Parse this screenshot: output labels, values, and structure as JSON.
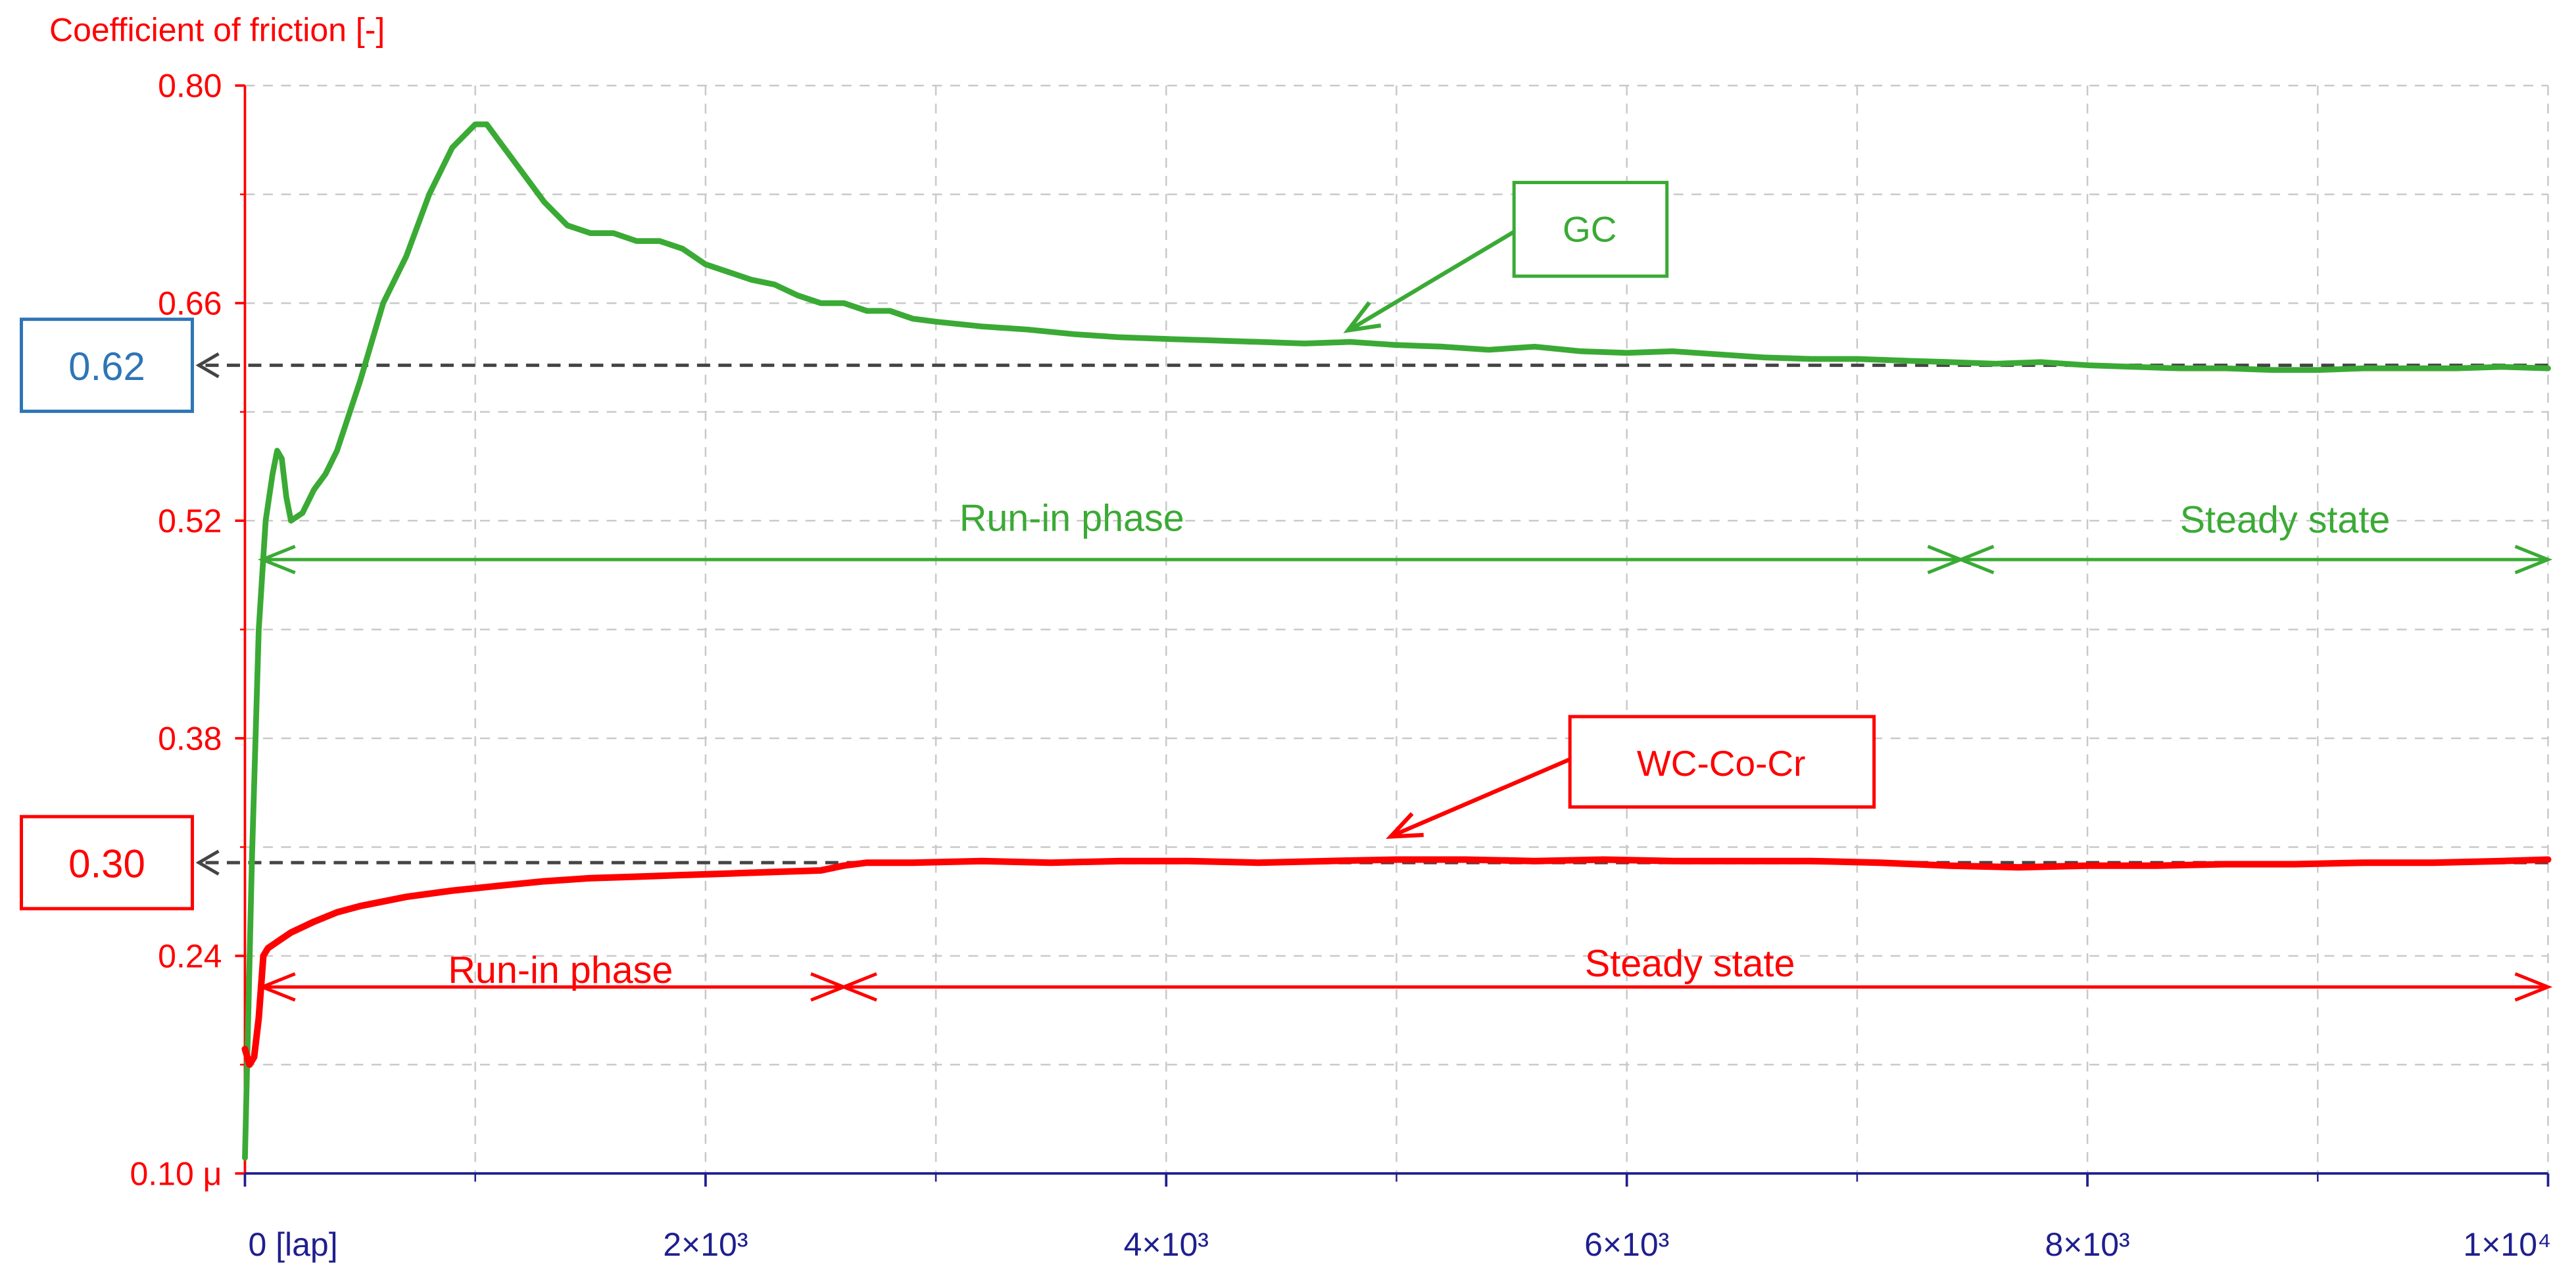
{
  "chart_data": {
    "type": "line",
    "y_axis_title": "Coefficient of friction [-]",
    "y_tick_labels": [
      "0.10 μ",
      "0.24",
      "0.38",
      "0.52",
      "0.66",
      "0.80"
    ],
    "x_tick_labels": [
      "0 [lap]",
      "2×10³",
      "4×10³",
      "6×10³",
      "8×10³",
      "1×10⁴"
    ],
    "xlim": [
      0,
      10000
    ],
    "ylim": [
      0.1,
      0.8
    ],
    "grid": true,
    "colors": {
      "y_axis": "#ff0000",
      "x_axis": "#1f1f8f",
      "gc": "#3aaa35",
      "wc": "#ff0000",
      "ref_line": "#444444",
      "box_062": "#2e75b6",
      "box_030": "#ff0000",
      "grid": "#c9c9c9"
    },
    "reference_lines": [
      {
        "value": 0.62,
        "label": "0.62",
        "color": "#2e75b6"
      },
      {
        "value": 0.3,
        "label": "0.30",
        "color": "#ff0000"
      }
    ],
    "series": [
      {
        "name": "GC",
        "color": "#3aaa35",
        "x": [
          0,
          30,
          60,
          90,
          120,
          140,
          160,
          180,
          200,
          250,
          300,
          350,
          400,
          500,
          600,
          700,
          800,
          900,
          1000,
          1050,
          1100,
          1200,
          1300,
          1400,
          1500,
          1600,
          1700,
          1800,
          1900,
          2000,
          2100,
          2200,
          2300,
          2400,
          2500,
          2600,
          2700,
          2800,
          2900,
          3000,
          3200,
          3400,
          3600,
          3800,
          4000,
          4200,
          4400,
          4600,
          4800,
          5000,
          5200,
          5400,
          5600,
          5800,
          6000,
          6200,
          6400,
          6600,
          6800,
          7000,
          7200,
          7400,
          7600,
          7800,
          8000,
          8200,
          8400,
          8600,
          8800,
          9000,
          9200,
          9400,
          9600,
          9800,
          10000
        ],
        "y": [
          0.11,
          0.3,
          0.45,
          0.52,
          0.55,
          0.565,
          0.56,
          0.535,
          0.52,
          0.525,
          0.54,
          0.55,
          0.565,
          0.61,
          0.66,
          0.69,
          0.73,
          0.76,
          0.775,
          0.775,
          0.765,
          0.745,
          0.725,
          0.71,
          0.705,
          0.705,
          0.7,
          0.7,
          0.695,
          0.685,
          0.68,
          0.675,
          0.672,
          0.665,
          0.66,
          0.66,
          0.655,
          0.655,
          0.65,
          0.648,
          0.645,
          0.643,
          0.64,
          0.638,
          0.637,
          0.636,
          0.635,
          0.634,
          0.635,
          0.633,
          0.632,
          0.63,
          0.632,
          0.629,
          0.628,
          0.629,
          0.627,
          0.625,
          0.624,
          0.624,
          0.623,
          0.622,
          0.621,
          0.622,
          0.62,
          0.619,
          0.618,
          0.618,
          0.617,
          0.617,
          0.618,
          0.618,
          0.618,
          0.619,
          0.618
        ]
      },
      {
        "name": "WC-Co-Cr",
        "color": "#ff0000",
        "x": [
          0,
          20,
          40,
          60,
          80,
          100,
          150,
          200,
          300,
          400,
          500,
          700,
          900,
          1100,
          1300,
          1500,
          1700,
          1900,
          2100,
          2300,
          2500,
          2600,
          2700,
          2900,
          3200,
          3500,
          3800,
          4100,
          4400,
          4700,
          5000,
          5300,
          5600,
          5900,
          6200,
          6500,
          6800,
          7100,
          7400,
          7700,
          8000,
          8300,
          8600,
          8900,
          9200,
          9500,
          9800,
          10000
        ],
        "y": [
          0.18,
          0.17,
          0.175,
          0.2,
          0.24,
          0.245,
          0.25,
          0.255,
          0.262,
          0.268,
          0.272,
          0.278,
          0.282,
          0.285,
          0.288,
          0.29,
          0.291,
          0.292,
          0.293,
          0.294,
          0.295,
          0.298,
          0.3,
          0.3,
          0.301,
          0.3,
          0.301,
          0.301,
          0.3,
          0.301,
          0.302,
          0.302,
          0.301,
          0.302,
          0.301,
          0.301,
          0.301,
          0.3,
          0.298,
          0.297,
          0.298,
          0.298,
          0.299,
          0.299,
          0.3,
          0.3,
          0.301,
          0.302
        ]
      }
    ],
    "annotations": [
      {
        "text": "GC",
        "color": "#3aaa35",
        "box_edge": "#3aaa35"
      },
      {
        "text": "WC-Co-Cr",
        "color": "#ff0000",
        "box_edge": "#ff0000"
      },
      {
        "text": "Run-in phase",
        "color": "#3aaa35",
        "from_x": 75,
        "to_x": 7450,
        "y": 0.495
      },
      {
        "text": "Steady state",
        "color": "#3aaa35",
        "from_x": 7450,
        "to_x": 10000,
        "y": 0.495
      },
      {
        "text": "Run-in phase",
        "color": "#ff0000",
        "from_x": 75,
        "to_x": 2600,
        "y": 0.22
      },
      {
        "text": "Steady state",
        "color": "#ff0000",
        "from_x": 2600,
        "to_x": 10000,
        "y": 0.22
      }
    ]
  }
}
